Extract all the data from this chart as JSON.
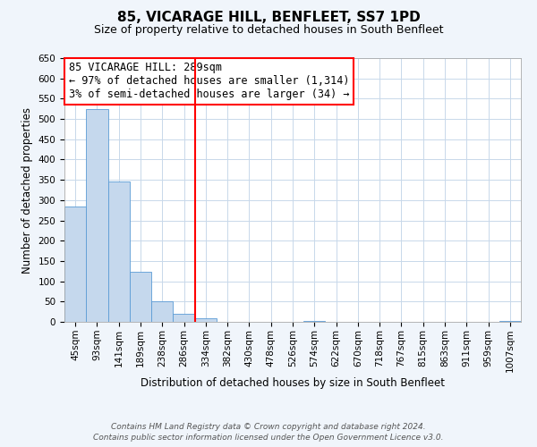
{
  "title": "85, VICARAGE HILL, BENFLEET, SS7 1PD",
  "subtitle": "Size of property relative to detached houses in South Benfleet",
  "xlabel": "Distribution of detached houses by size in South Benfleet",
  "ylabel": "Number of detached properties",
  "footer1": "Contains HM Land Registry data © Crown copyright and database right 2024.",
  "footer2": "Contains public sector information licensed under the Open Government Licence v3.0.",
  "bin_labels": [
    "45sqm",
    "93sqm",
    "141sqm",
    "189sqm",
    "238sqm",
    "286sqm",
    "334sqm",
    "382sqm",
    "430sqm",
    "478sqm",
    "526sqm",
    "574sqm",
    "622sqm",
    "670sqm",
    "718sqm",
    "767sqm",
    "815sqm",
    "863sqm",
    "911sqm",
    "959sqm",
    "1007sqm"
  ],
  "bar_values": [
    284,
    524,
    346,
    124,
    50,
    20,
    8,
    0,
    0,
    0,
    0,
    2,
    0,
    0,
    0,
    0,
    0,
    0,
    0,
    0,
    3
  ],
  "bar_color": "#c5d8ed",
  "bar_edge_color": "#5b9bd5",
  "ylim": [
    0,
    650
  ],
  "yticks": [
    0,
    50,
    100,
    150,
    200,
    250,
    300,
    350,
    400,
    450,
    500,
    550,
    600,
    650
  ],
  "vline_x": 5.5,
  "vline_color": "red",
  "annotation_title": "85 VICARAGE HILL: 289sqm",
  "annotation_line1": "← 97% of detached houses are smaller (1,314)",
  "annotation_line2": "3% of semi-detached houses are larger (34) →",
  "annotation_box_color": "white",
  "annotation_box_edge": "red",
  "background_color": "#f0f5fb",
  "plot_bg_color": "white",
  "grid_color": "#c8d8ea",
  "title_fontsize": 11,
  "subtitle_fontsize": 9,
  "axis_label_fontsize": 8.5,
  "tick_fontsize": 7.5,
  "annotation_fontsize": 8.5,
  "footer_fontsize": 6.5
}
